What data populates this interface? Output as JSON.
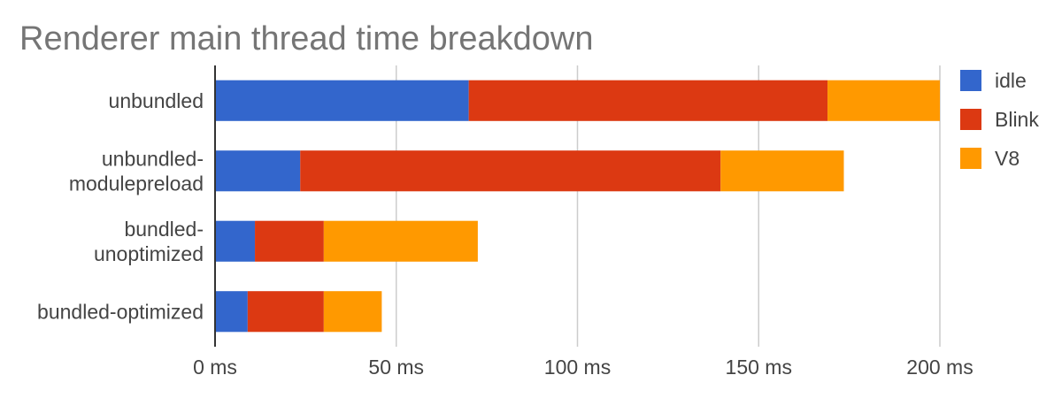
{
  "chart_data": {
    "type": "bar",
    "orientation": "horizontal",
    "stacked": true,
    "title": "Renderer main thread time breakdown",
    "xlabel": "",
    "ylabel": "",
    "categories": [
      [
        "unbundled"
      ],
      [
        "unbundled-",
        "modulepreload"
      ],
      [
        "bundled-",
        "unoptimized"
      ],
      [
        "bundled-optimized"
      ]
    ],
    "series": [
      {
        "name": "idle",
        "color": "#3366cc",
        "values": [
          70,
          23.5,
          11,
          9
        ]
      },
      {
        "name": "Blink",
        "color": "#dc3912",
        "values": [
          99,
          116,
          19,
          21
        ]
      },
      {
        "name": "V8",
        "color": "#ff9900",
        "values": [
          31,
          34,
          42.5,
          16
        ]
      }
    ],
    "xlim": [
      0,
      200
    ],
    "xticks": [
      0,
      50,
      100,
      150,
      200
    ],
    "xtick_labels": [
      "0 ms",
      "50 ms",
      "100 ms",
      "150 ms",
      "200 ms"
    ],
    "grid": true,
    "legend_position": "right"
  }
}
